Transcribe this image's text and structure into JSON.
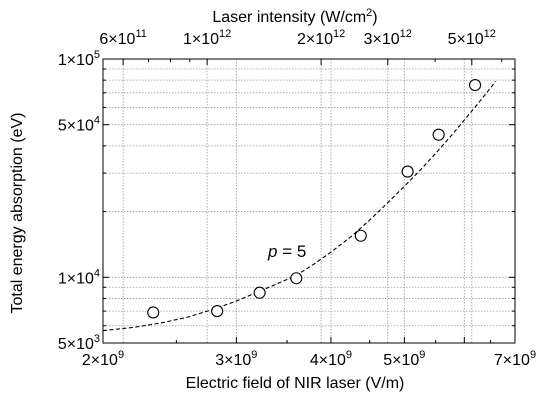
{
  "chart_data": {
    "type": "scatter",
    "x_scale": "log",
    "y_scale": "log",
    "xlim": [
      2000000000.0,
      7000000000.0
    ],
    "ylim": [
      5000,
      100000
    ],
    "grid": true,
    "legend": "none",
    "xlabel": "Electric field of NIR laser (V/m)",
    "ylabel": "Total energy absorption (eV)",
    "top_xlabel": {
      "text": "Laser intensity (W/cm",
      "sup": "2",
      "end": ")"
    },
    "x_ticks": [
      {
        "value": 2000000000.0,
        "mant": "2×10",
        "exp": "9"
      },
      {
        "value": 3000000000.0,
        "mant": "3×10",
        "exp": "9"
      },
      {
        "value": 4000000000.0,
        "mant": "4×10",
        "exp": "9"
      },
      {
        "value": 5000000000.0,
        "mant": "5×10",
        "exp": "9"
      },
      {
        "value": 7000000000.0,
        "mant": "7×10",
        "exp": "9"
      }
    ],
    "y_ticks": [
      {
        "value": 5000,
        "mant": "5×10",
        "exp": "3"
      },
      {
        "value": 10000,
        "mant": "1×10",
        "exp": "4"
      },
      {
        "value": 50000,
        "mant": "5×10",
        "exp": "4"
      },
      {
        "value": 100000,
        "mant": "1×10",
        "exp": "5"
      }
    ],
    "top_ticks": [
      {
        "intensity": 600000000000.0,
        "mant": "6×10",
        "exp": "11"
      },
      {
        "intensity": 1000000000000.0,
        "mant": "1×10",
        "exp": "12"
      },
      {
        "intensity": 2000000000000.0,
        "mant": "2×10",
        "exp": "12"
      },
      {
        "intensity": 3000000000000.0,
        "mant": "3×10",
        "exp": "12"
      },
      {
        "intensity": 5000000000000.0,
        "mant": "5×10",
        "exp": "12"
      }
    ],
    "series": [
      {
        "marker": "open-circle",
        "x": [
          2330000000.0,
          2830000000.0,
          3220000000.0,
          3600000000.0,
          4380000000.0,
          5050000000.0,
          5550000000.0,
          6200000000.0
        ],
        "y": [
          6900,
          7000,
          8500,
          9900,
          15500,
          30500,
          45000,
          76000
        ]
      }
    ],
    "fit": {
      "style": "dashed",
      "x": [
        2000000000.0,
        2200000000.0,
        2400000000.0,
        2600000000.0,
        2800000000.0,
        3000000000.0,
        3200000000.0,
        3400000000.0,
        3600000000.0,
        3800000000.0,
        4000000000.0,
        4250000000.0,
        4500000000.0,
        4750000000.0,
        5000000000.0,
        5250000000.0,
        5500000000.0,
        5750000000.0,
        6000000000.0,
        6250000000.0,
        6500000000.0,
        6600000000.0
      ],
      "y": [
        5700,
        5900,
        6200,
        6600,
        7150,
        7780,
        8550,
        9360,
        10200,
        11500,
        13050,
        15350,
        18300,
        21900,
        26100,
        31000,
        37000,
        44000,
        52500,
        62300,
        73700,
        79000
      ]
    },
    "annotation": {
      "italic": "p",
      "rest": " = 5"
    }
  }
}
